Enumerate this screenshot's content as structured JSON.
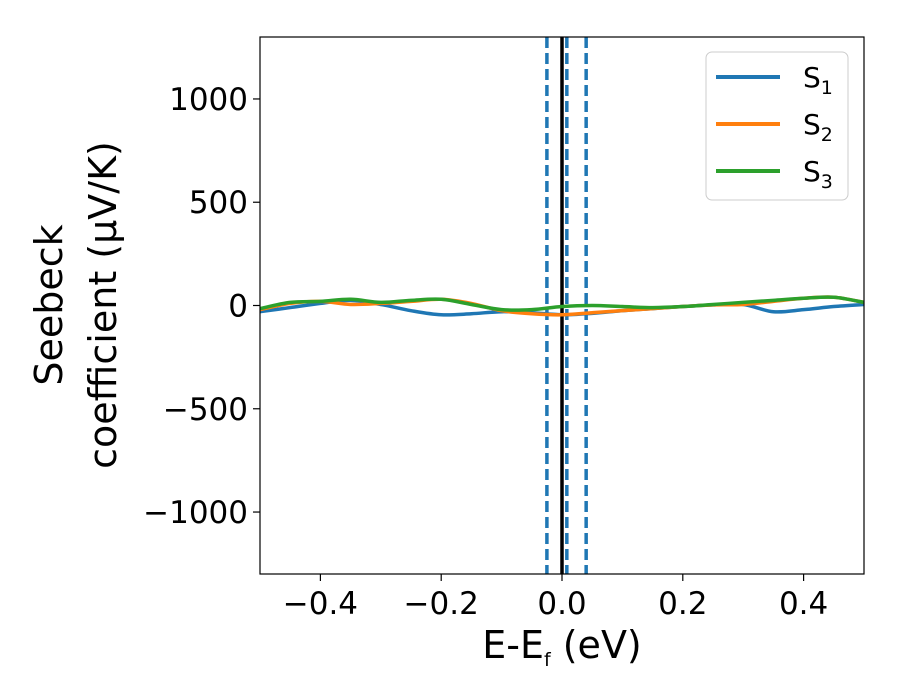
{
  "chart_data": {
    "type": "line",
    "title": "",
    "xlabel": {
      "main": "E-E",
      "sub": "f",
      "suffix": " (eV)"
    },
    "ylabel": {
      "line1": "Seebeck",
      "line2": "coefficient  (μV/K)"
    },
    "xlim": [
      -0.5,
      0.5
    ],
    "ylim": [
      -1300,
      1300
    ],
    "xticks": [
      -0.4,
      -0.2,
      0.0,
      0.2,
      0.4
    ],
    "xtick_labels": [
      "−0.4",
      "−0.2",
      "0.0",
      "0.2",
      "0.4"
    ],
    "yticks": [
      -1000,
      -500,
      0,
      500,
      1000
    ],
    "ytick_labels": [
      "−1000",
      "−500",
      "0",
      "500",
      "1000"
    ],
    "grid": false,
    "legend_position": "top-right",
    "vlines": [
      {
        "x": 0.0,
        "style": "solid",
        "color": "#000000"
      },
      {
        "x": -0.025,
        "style": "dashed",
        "color": "#1f77b4"
      },
      {
        "x": 0.008,
        "style": "dashed",
        "color": "#1f77b4"
      },
      {
        "x": 0.04,
        "style": "dashed",
        "color": "#1f77b4"
      }
    ],
    "x": [
      -0.5,
      -0.45,
      -0.4,
      -0.35,
      -0.3,
      -0.25,
      -0.2,
      -0.15,
      -0.1,
      -0.05,
      0.0,
      0.05,
      0.1,
      0.15,
      0.2,
      0.25,
      0.3,
      0.35,
      0.4,
      0.45,
      0.5
    ],
    "series": [
      {
        "name": "S",
        "sub": "1",
        "color": "#1f77b4",
        "values": [
          -30,
          -10,
          10,
          25,
          5,
          -25,
          -45,
          -40,
          -30,
          -35,
          -45,
          -38,
          -25,
          -15,
          -5,
          3,
          5,
          -30,
          -20,
          -5,
          5
        ]
      },
      {
        "name": "S",
        "sub": "2",
        "color": "#ff7f0e",
        "values": [
          -20,
          10,
          20,
          5,
          10,
          20,
          30,
          10,
          -25,
          -40,
          -45,
          -35,
          -25,
          -15,
          -5,
          3,
          5,
          20,
          35,
          40,
          15
        ]
      },
      {
        "name": "S",
        "sub": "3",
        "color": "#2ca02c",
        "values": [
          -15,
          15,
          20,
          30,
          15,
          25,
          30,
          5,
          -20,
          -20,
          -5,
          0,
          -5,
          -10,
          -5,
          5,
          15,
          25,
          35,
          40,
          15
        ]
      }
    ]
  }
}
